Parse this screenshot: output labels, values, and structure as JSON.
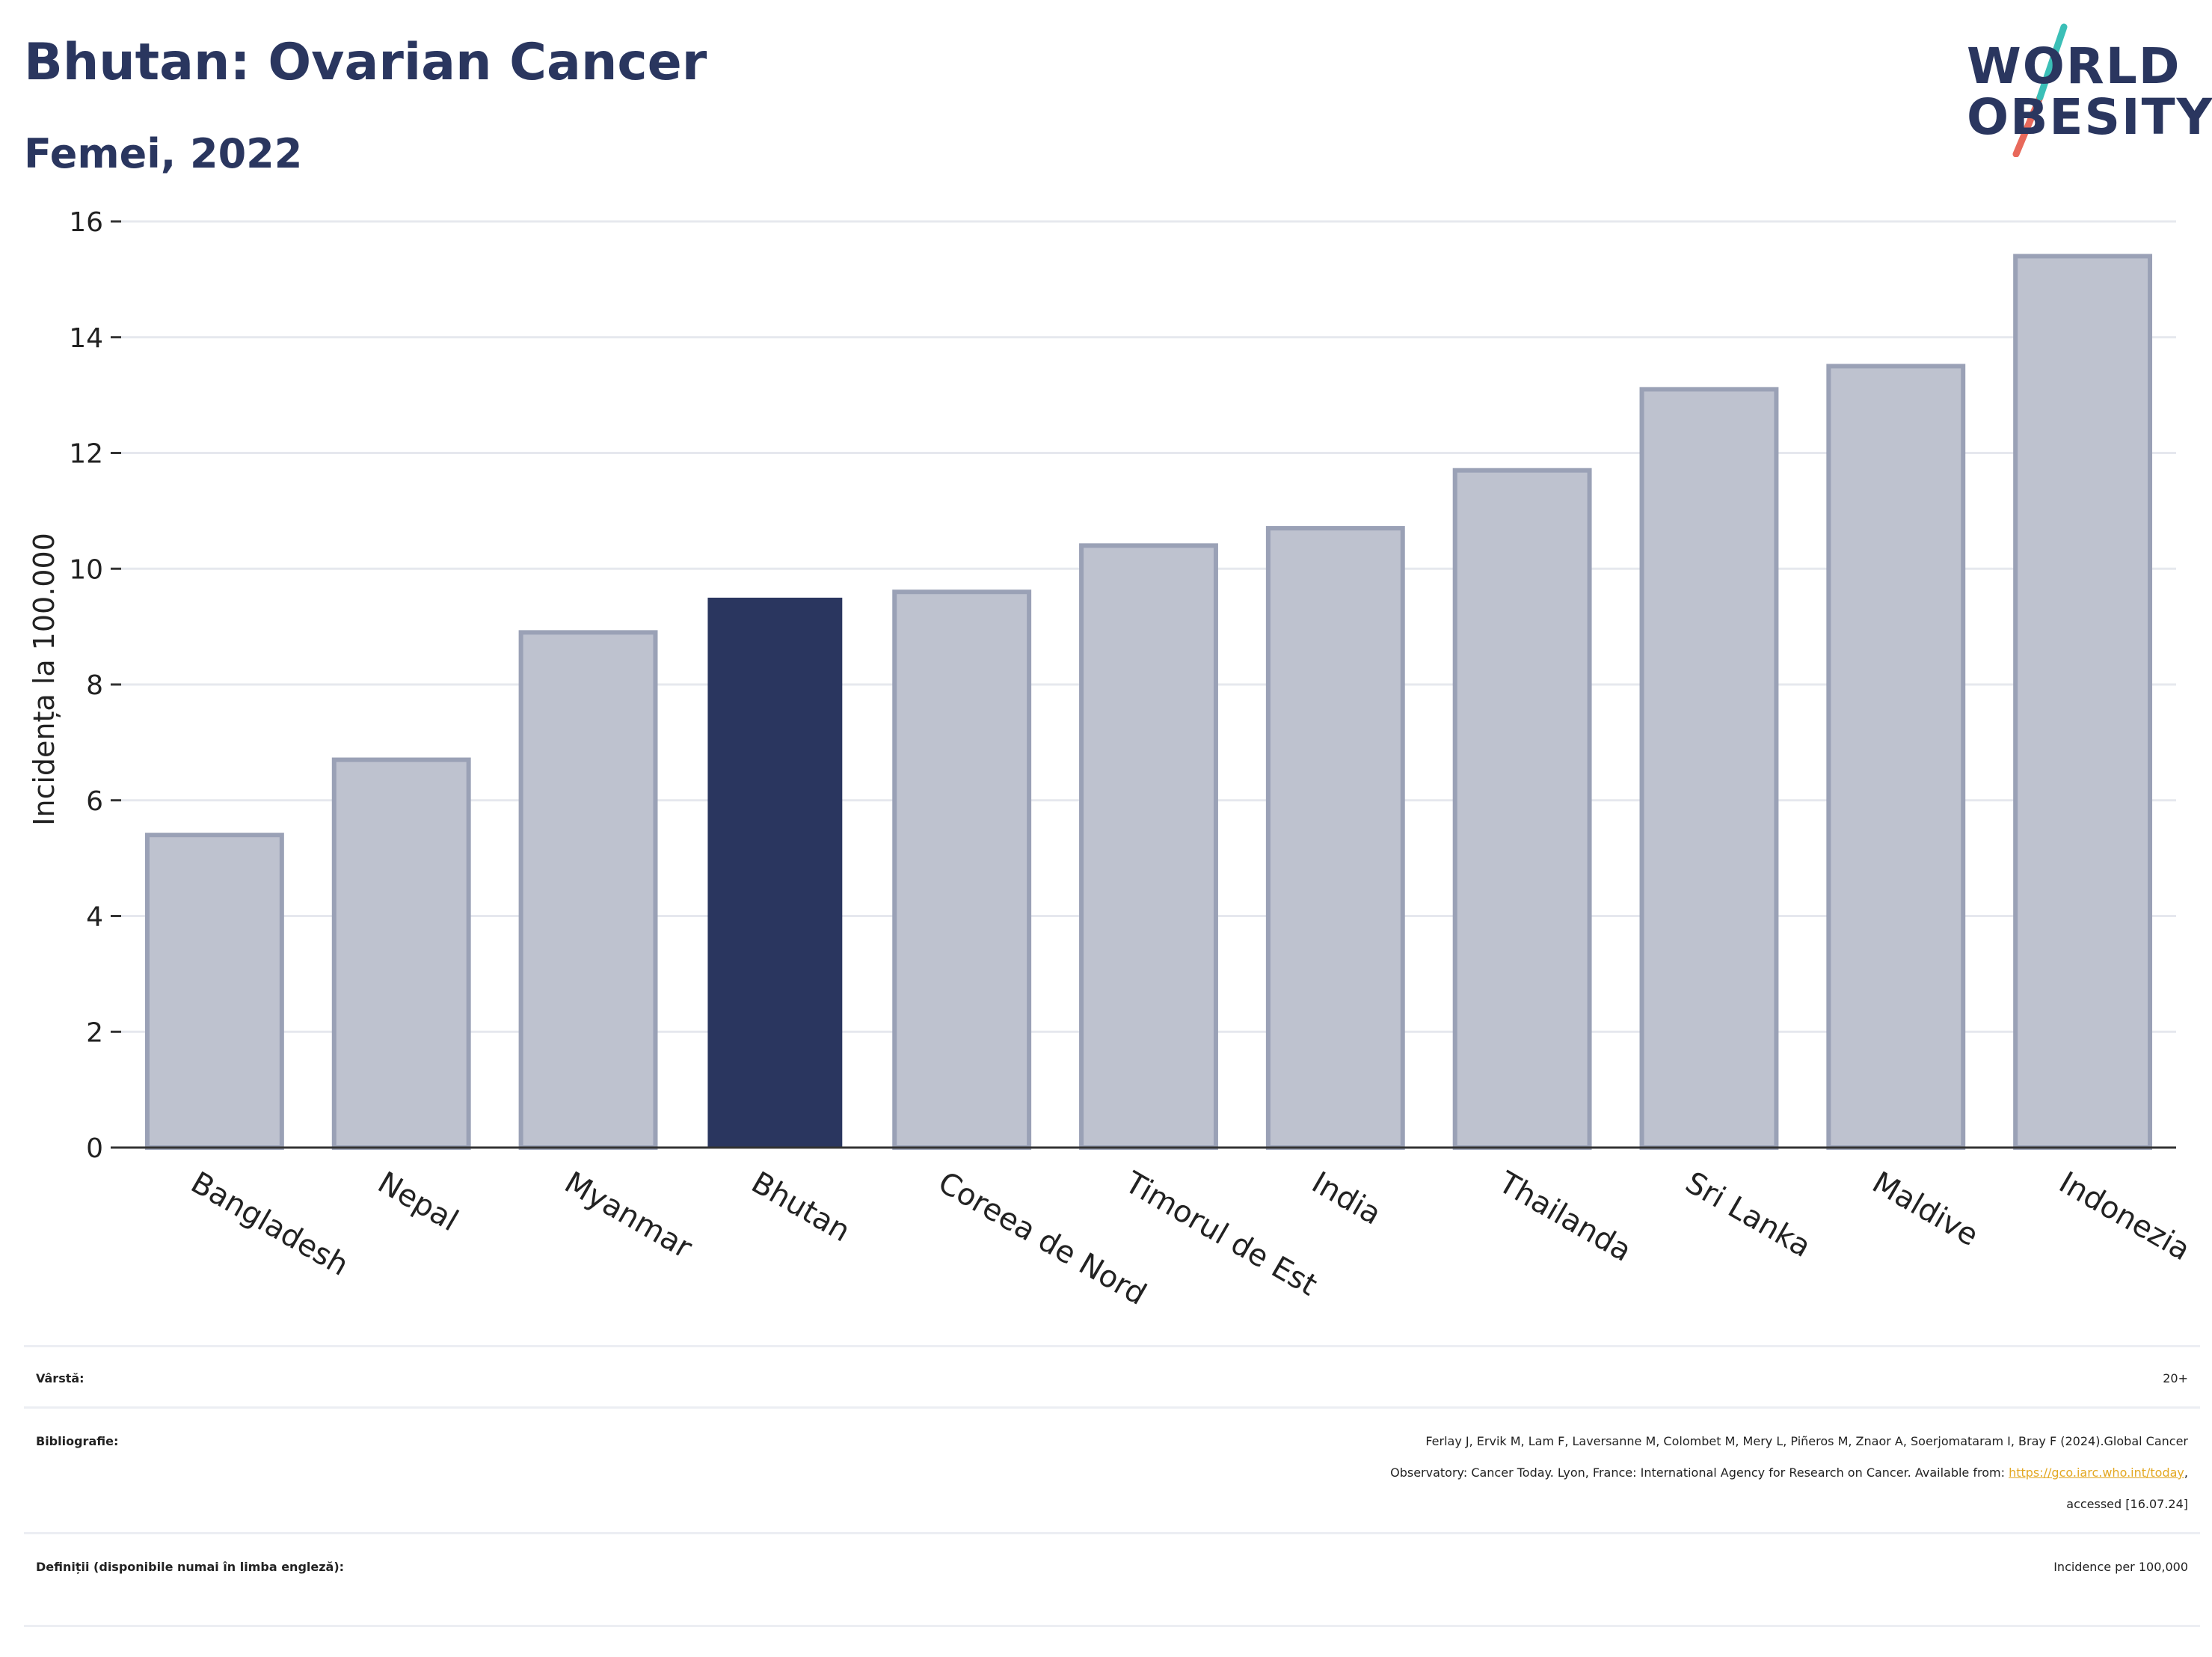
{
  "header": {
    "title": "Bhutan: Ovarian Cancer",
    "subtitle": "Femei, 2022"
  },
  "logo": {
    "line1": "WORLD",
    "line2": "OBESITY",
    "slash_colors": [
      "#3bbfb7",
      "#e8695b"
    ]
  },
  "chart_data": {
    "type": "bar",
    "ylabel": "Incidența la 100.000",
    "ylim": [
      0,
      16
    ],
    "yticks": [
      "0",
      "2",
      "4",
      "6",
      "8",
      "10",
      "12",
      "14",
      "16"
    ],
    "grid": true,
    "categories": [
      "Bangladesh",
      "Nepal",
      "Myanmar",
      "Bhutan",
      "Coreea de Nord",
      "Timorul de Est",
      "India",
      "Thailanda",
      "Sri Lanka",
      "Maldive",
      "Indonezia"
    ],
    "values": [
      5.4,
      6.7,
      8.9,
      9.5,
      9.6,
      10.4,
      10.7,
      11.7,
      13.1,
      13.5,
      15.4
    ],
    "highlight": "Bhutan",
    "colors": {
      "bar": "#bec2cf",
      "bar_edge": "#9aa1b6",
      "highlight": "#2a365f",
      "grid": "#e6e8ee",
      "axis": "#333333"
    }
  },
  "meta": {
    "age_label": "Vârstă:",
    "age_value": "20+",
    "biblio_label": "Bibliografie:",
    "biblio_line1": "Ferlay J, Ervik M, Lam F, Laversanne M, Colombet M, Mery L, Piñeros M, Znaor A, Soerjomataram I, Bray F (2024).Global Cancer",
    "biblio_line2_prefix": "Observatory: Cancer Today. Lyon, France: International Agency for Research on Cancer. Available from: ",
    "biblio_link": "https://gco.iarc.who.int/today",
    "biblio_line2_suffix": ",",
    "biblio_line3": "accessed [16.07.24]",
    "def_label": "Definiții (disponibile numai în limba engleză):",
    "def_value": "Incidence per 100,000"
  }
}
